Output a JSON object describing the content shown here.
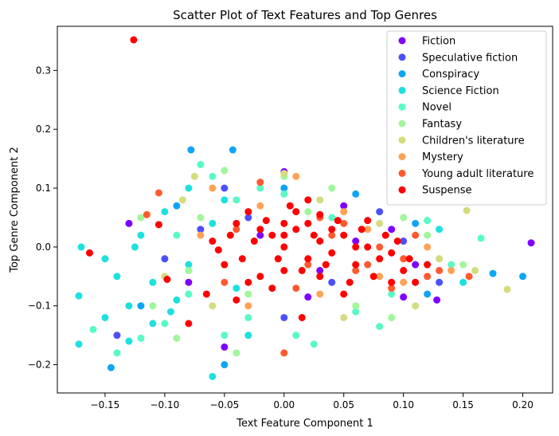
{
  "chart_data": {
    "type": "scatter",
    "title": "Scatter Plot of Text Features and Top Genres",
    "xlabel": "Text Feature Component 1",
    "ylabel": "Top Genre Component 2",
    "xlim": [
      -0.19,
      0.225
    ],
    "ylim": [
      -0.248,
      0.375
    ],
    "xticks": [
      {
        "value": -0.15,
        "label": "−0.15"
      },
      {
        "value": -0.1,
        "label": "−0.10"
      },
      {
        "value": -0.05,
        "label": "−0.05"
      },
      {
        "value": 0.0,
        "label": "0.00"
      },
      {
        "value": 0.05,
        "label": "0.05"
      },
      {
        "value": 0.1,
        "label": "0.10"
      },
      {
        "value": 0.15,
        "label": "0.15"
      },
      {
        "value": 0.2,
        "label": "0.20"
      }
    ],
    "yticks": [
      {
        "value": -0.2,
        "label": "−0.2"
      },
      {
        "value": -0.1,
        "label": "−0.1"
      },
      {
        "value": 0.0,
        "label": "0.0"
      },
      {
        "value": 0.1,
        "label": "0.1"
      },
      {
        "value": 0.2,
        "label": "0.2"
      },
      {
        "value": 0.3,
        "label": "0.3"
      }
    ],
    "grid": false,
    "legend_position": "top-right",
    "series": [
      {
        "name": "Fiction",
        "color": "#8000ff",
        "points": [
          [
            0.207,
            0.007
          ],
          [
            0.128,
            -0.09
          ],
          [
            0.1,
            -0.085
          ],
          [
            0.02,
            -0.085
          ],
          [
            -0.08,
            -0.06
          ],
          [
            0.0,
            0.128
          ],
          [
            -0.13,
            0.04
          ],
          [
            0.05,
            0.07
          ],
          [
            -0.05,
            -0.17
          ],
          [
            0.09,
            0.03
          ],
          [
            0.03,
            -0.04
          ],
          [
            -0.02,
            0.02
          ],
          [
            0.11,
            -0.03
          ],
          [
            0.06,
            0.01
          ]
        ]
      },
      {
        "name": "Speculative fiction",
        "color": "#4c50fb",
        "points": [
          [
            -0.14,
            -0.15
          ],
          [
            0.13,
            -0.06
          ],
          [
            -0.05,
            0.1
          ],
          [
            0.0,
            -0.12
          ],
          [
            0.08,
            0.06
          ],
          [
            -0.1,
            -0.02
          ],
          [
            0.04,
            -0.06
          ],
          [
            -0.03,
            0.05
          ],
          [
            0.1,
            0.01
          ],
          [
            -0.07,
            0.03
          ]
        ]
      },
      {
        "name": "Conspiracy",
        "color": "#0ea5f5",
        "points": [
          [
            0.2,
            -0.05
          ],
          [
            -0.145,
            -0.205
          ],
          [
            -0.05,
            -0.2
          ],
          [
            -0.078,
            0.165
          ],
          [
            -0.043,
            0.165
          ],
          [
            0.12,
            -0.08
          ],
          [
            -0.12,
            -0.1
          ],
          [
            0.06,
            0.09
          ],
          [
            0.175,
            -0.045
          ],
          [
            0.11,
            0.04
          ],
          [
            -0.09,
            0.07
          ],
          [
            0.0,
            0.1
          ]
        ]
      },
      {
        "name": "Science Fiction",
        "color": "#1ee0e0",
        "points": [
          [
            -0.172,
            -0.165
          ],
          [
            -0.172,
            -0.083
          ],
          [
            -0.17,
            0.0
          ],
          [
            -0.15,
            -0.12
          ],
          [
            -0.13,
            -0.16
          ],
          [
            -0.11,
            -0.13
          ],
          [
            -0.1,
            0.06
          ],
          [
            -0.12,
            0.02
          ],
          [
            -0.14,
            -0.05
          ],
          [
            -0.09,
            -0.09
          ],
          [
            -0.08,
            0.1
          ],
          [
            -0.06,
            -0.22
          ],
          [
            -0.06,
            0.04
          ],
          [
            -0.03,
            -0.15
          ],
          [
            -0.11,
            -0.06
          ],
          [
            -0.13,
            -0.1
          ],
          [
            -0.08,
            -0.03
          ],
          [
            -0.05,
            0.08
          ],
          [
            0.15,
            -0.06
          ],
          [
            0.13,
            0.03
          ],
          [
            -0.15,
            -0.02
          ],
          [
            -0.095,
            -0.11
          ],
          [
            -0.04,
            -0.07
          ],
          [
            -0.125,
            0.0
          ]
        ]
      },
      {
        "name": "Novel",
        "color": "#58fac5",
        "points": [
          [
            -0.16,
            -0.14
          ],
          [
            -0.14,
            -0.18
          ],
          [
            -0.12,
            -0.155
          ],
          [
            -0.1,
            -0.13
          ],
          [
            -0.09,
            0.02
          ],
          [
            -0.07,
            0.14
          ],
          [
            -0.06,
            0.12
          ],
          [
            -0.05,
            -0.15
          ],
          [
            -0.04,
            0.08
          ],
          [
            0.01,
            -0.15
          ],
          [
            0.025,
            -0.165
          ],
          [
            0.06,
            -0.11
          ],
          [
            0.08,
            -0.135
          ],
          [
            0.12,
            0.045
          ],
          [
            0.14,
            -0.03
          ],
          [
            0.165,
            0.015
          ],
          [
            -0.02,
            0.1
          ],
          [
            0.04,
            0.05
          ],
          [
            -0.08,
            -0.08
          ],
          [
            0.09,
            -0.08
          ],
          [
            -0.03,
            -0.12
          ],
          [
            0.0,
            0.09
          ]
        ]
      },
      {
        "name": "Fantasy",
        "color": "#a0f79a",
        "points": [
          [
            -0.09,
            -0.155
          ],
          [
            -0.11,
            -0.1
          ],
          [
            -0.12,
            0.05
          ],
          [
            -0.07,
            0.05
          ],
          [
            -0.04,
            -0.18
          ],
          [
            -0.05,
            0.13
          ],
          [
            0.0,
            0.12
          ],
          [
            0.04,
            0.1
          ],
          [
            0.06,
            -0.1
          ],
          [
            0.09,
            -0.12
          ],
          [
            0.12,
            0.02
          ],
          [
            0.15,
            -0.03
          ],
          [
            -0.03,
            -0.08
          ],
          [
            0.02,
            0.06
          ],
          [
            -0.08,
            -0.04
          ],
          [
            0.1,
            0.05
          ]
        ]
      },
      {
        "name": "Children's literature",
        "color": "#d4dc7f",
        "points": [
          [
            0.153,
            0.062
          ],
          [
            0.187,
            -0.072
          ],
          [
            0.16,
            -0.04
          ],
          [
            0.0,
            0.125
          ],
          [
            -0.075,
            0.12
          ],
          [
            -0.085,
            0.08
          ],
          [
            0.05,
            -0.12
          ],
          [
            0.11,
            -0.1
          ],
          [
            -0.06,
            -0.1
          ],
          [
            0.03,
            0.08
          ],
          [
            -0.1,
            -0.05
          ],
          [
            0.08,
            0.04
          ],
          [
            0.13,
            -0.02
          ]
        ]
      },
      {
        "name": "Mystery",
        "color": "#ffa256",
        "points": [
          [
            0.01,
            0.12
          ],
          [
            -0.06,
            0.1
          ],
          [
            0.08,
            -0.05
          ],
          [
            0.12,
            0.0
          ],
          [
            -0.03,
            -0.1
          ],
          [
            0.05,
            0.06
          ],
          [
            0.1,
            -0.06
          ],
          [
            -0.07,
            0.02
          ],
          [
            0.03,
            -0.08
          ],
          [
            0.14,
            -0.04
          ],
          [
            -0.02,
            0.07
          ],
          [
            0.07,
            0.03
          ]
        ]
      },
      {
        "name": "Young adult literature",
        "color": "#ff5a2f",
        "points": [
          [
            -0.105,
            0.092
          ],
          [
            -0.115,
            0.055
          ],
          [
            0.155,
            -0.05
          ],
          [
            0.13,
            -0.04
          ],
          [
            0.1,
            -0.02
          ],
          [
            0.08,
            0.0
          ],
          [
            0.06,
            -0.04
          ],
          [
            0.04,
            0.02
          ],
          [
            0.02,
            -0.03
          ],
          [
            0.0,
            -0.18
          ],
          [
            -0.05,
            -0.06
          ],
          [
            0.11,
            0.02
          ],
          [
            -0.02,
            0.11
          ],
          [
            0.09,
            -0.07
          ],
          [
            0.03,
            0.05
          ],
          [
            0.12,
            -0.05
          ],
          [
            -0.04,
            0.03
          ],
          [
            0.07,
            -0.03
          ],
          [
            0.05,
            0.04
          ],
          [
            0.01,
            -0.07
          ]
        ]
      },
      {
        "name": "Suspense",
        "color": "#ff0000",
        "points": [
          [
            -0.126,
            0.352
          ],
          [
            -0.163,
            -0.01
          ],
          [
            -0.105,
            0.038
          ],
          [
            -0.098,
            -0.055
          ],
          [
            -0.08,
            -0.13
          ],
          [
            -0.065,
            -0.08
          ],
          [
            -0.05,
            -0.03
          ],
          [
            -0.04,
            0.04
          ],
          [
            -0.03,
            0.06
          ],
          [
            -0.02,
            -0.05
          ],
          [
            -0.01,
            0.02
          ],
          [
            0.0,
            0.0
          ],
          [
            0.01,
            0.03
          ],
          [
            0.02,
            -0.02
          ],
          [
            0.03,
            0.01
          ],
          [
            0.04,
            -0.01
          ],
          [
            0.05,
            0.02
          ],
          [
            0.06,
            -0.03
          ],
          [
            0.07,
            0.0
          ],
          [
            0.08,
            -0.02
          ],
          [
            0.09,
            -0.01
          ],
          [
            0.1,
            -0.04
          ],
          [
            0.11,
            -0.06
          ],
          [
            -0.02,
            0.03
          ],
          [
            0.0,
            -0.04
          ],
          [
            0.01,
            0.06
          ],
          [
            0.03,
            -0.05
          ],
          [
            0.045,
            0.045
          ],
          [
            -0.01,
            -0.07
          ],
          [
            0.02,
            0.04
          ],
          [
            -0.035,
            -0.02
          ],
          [
            0.065,
            0.03
          ],
          [
            0.015,
            -0.12
          ],
          [
            -0.025,
            0.01
          ],
          [
            0.055,
            -0.06
          ],
          [
            0.085,
            0.02
          ],
          [
            -0.045,
            0.02
          ],
          [
            0.005,
            0.07
          ],
          [
            0.035,
            -0.03
          ],
          [
            -0.005,
            -0.02
          ],
          [
            0.025,
            0.02
          ],
          [
            0.075,
            -0.05
          ],
          [
            0.095,
            0.01
          ],
          [
            -0.055,
            -0.005
          ],
          [
            0.0,
            0.02
          ],
          [
            0.04,
            0.03
          ],
          [
            0.015,
            -0.04
          ],
          [
            -0.015,
            0.045
          ],
          [
            0.06,
            0.0
          ],
          [
            0.105,
            -0.02
          ],
          [
            -0.03,
            -0.06
          ],
          [
            0.05,
            -0.08
          ],
          [
            0.02,
            0.08
          ],
          [
            -0.06,
            0.01
          ],
          [
            0.03,
            0.055
          ],
          [
            0.07,
            0.045
          ],
          [
            0.09,
            -0.06
          ],
          [
            -0.04,
            -0.09
          ],
          [
            0.12,
            -0.03
          ],
          [
            0.0,
            0.04
          ]
        ]
      }
    ]
  }
}
